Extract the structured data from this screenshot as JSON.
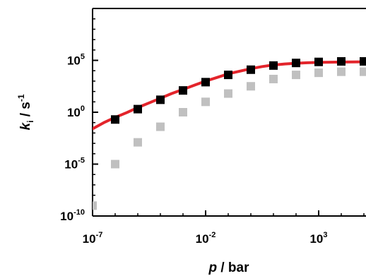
{
  "chart_data": {
    "type": "scatter",
    "title": "",
    "xlabel": {
      "var": "p",
      "rest": " / bar"
    },
    "ylabel": {
      "var": "k",
      "sub": "i",
      "rest": " / s",
      "sup": "-1"
    },
    "x_scale": "log",
    "y_scale": "log",
    "xlim_log10": [
      -7,
      5.5
    ],
    "ylim_log10": [
      -10,
      10
    ],
    "x_ticks": [
      {
        "base": "10",
        "exp": "-7",
        "log10": -7
      },
      {
        "base": "10",
        "exp": "-2",
        "log10": -2
      },
      {
        "base": "10",
        "exp": "3",
        "log10": 3
      }
    ],
    "y_ticks": [
      {
        "base": "10",
        "exp": "-10",
        "log10": -10
      },
      {
        "base": "10",
        "exp": "-5",
        "log10": -5
      },
      {
        "base": "10",
        "exp": "0",
        "log10": 0
      },
      {
        "base": "10",
        "exp": "5",
        "log10": 5
      }
    ],
    "grid": false,
    "series": [
      {
        "marker": "square",
        "color": "#000000",
        "points_log10": [
          [
            -6,
            -0.7
          ],
          [
            -5,
            0.3
          ],
          [
            -4,
            1.2
          ],
          [
            -3,
            2.1
          ],
          [
            -2,
            2.9
          ],
          [
            -1,
            3.6
          ],
          [
            0,
            4.1
          ],
          [
            1,
            4.5
          ],
          [
            2,
            4.75
          ],
          [
            3,
            4.85
          ],
          [
            4,
            4.9
          ],
          [
            5,
            4.9
          ]
        ]
      },
      {
        "marker": "square",
        "color": "#c0c0c0",
        "points_log10": [
          [
            -7,
            -9
          ],
          [
            -6,
            -5
          ],
          [
            -5,
            -2.9
          ],
          [
            -4,
            -1.4
          ],
          [
            -3,
            0
          ],
          [
            -2,
            1
          ],
          [
            -1,
            1.8
          ],
          [
            0,
            2.5
          ],
          [
            1,
            3.2
          ],
          [
            2,
            3.6
          ],
          [
            3,
            3.8
          ],
          [
            4,
            3.9
          ],
          [
            5,
            3.9
          ]
        ]
      },
      {
        "marker": "line",
        "color": "#e3242b",
        "points_log10": [
          [
            -7,
            -1.6
          ],
          [
            -6.5,
            -1.0
          ],
          [
            -6,
            -0.5
          ],
          [
            -5.5,
            -0.05
          ],
          [
            -5,
            0.45
          ],
          [
            -4.5,
            0.9
          ],
          [
            -4,
            1.35
          ],
          [
            -3.5,
            1.8
          ],
          [
            -3,
            2.2
          ],
          [
            -2.5,
            2.6
          ],
          [
            -2,
            3.0
          ],
          [
            -1.5,
            3.35
          ],
          [
            -1,
            3.7
          ],
          [
            -0.5,
            3.95
          ],
          [
            0,
            4.2
          ],
          [
            0.5,
            4.4
          ],
          [
            1,
            4.55
          ],
          [
            1.5,
            4.65
          ],
          [
            2,
            4.72
          ],
          [
            2.5,
            4.77
          ],
          [
            3,
            4.8
          ],
          [
            3.5,
            4.82
          ],
          [
            4,
            4.84
          ],
          [
            4.5,
            4.85
          ],
          [
            5,
            4.86
          ],
          [
            5.5,
            4.87
          ]
        ]
      }
    ]
  }
}
